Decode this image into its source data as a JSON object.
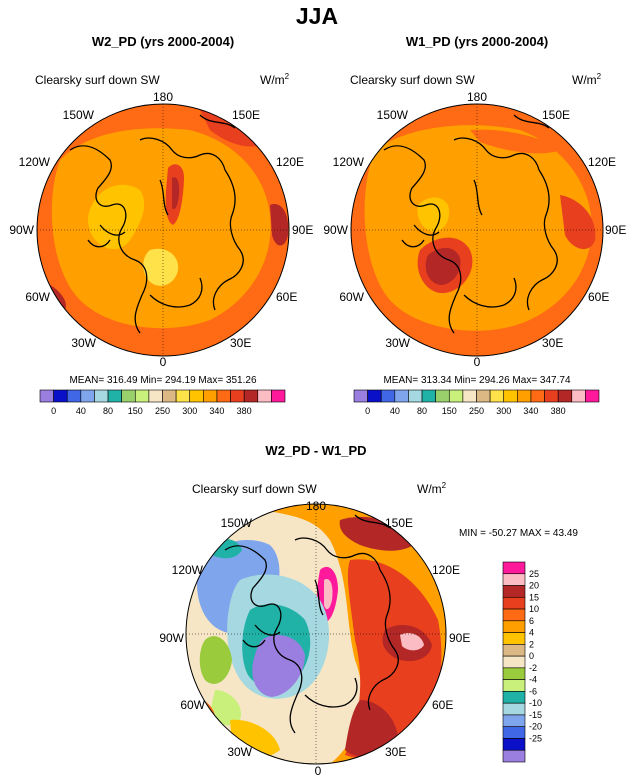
{
  "title": "JJA",
  "panels": [
    {
      "title": "W2_PD (yrs 2000-2004)",
      "variable": "Clearsky surf down SW",
      "units_base": "W/m",
      "units_exp": "2",
      "stats": "MEAN= 316.49  Min= 294.19  Max= 351.26",
      "longitude_labels": [
        "180",
        "150E",
        "120E",
        "90E",
        "60E",
        "30E",
        "0",
        "30W",
        "60W",
        "90W",
        "120W",
        "150W"
      ]
    },
    {
      "title": "W1_PD (yrs 2000-2004)",
      "variable": "Clearsky surf down SW",
      "units_base": "W/m",
      "units_exp": "2",
      "stats": "MEAN= 313.34  Min= 294.26  Max= 347.74",
      "longitude_labels": [
        "180",
        "150E",
        "120E",
        "90E",
        "60E",
        "30E",
        "0",
        "30W",
        "60W",
        "90W",
        "120W",
        "150W"
      ]
    },
    {
      "title": "W2_PD - W1_PD",
      "variable": "Clearsky surf down SW",
      "units_base": "W/m",
      "units_exp": "2",
      "stats": "MIN = -50.27 MAX =  43.49",
      "longitude_labels": [
        "180",
        "150E",
        "120E",
        "90E",
        "60E",
        "30E",
        "0",
        "30W",
        "60W",
        "90W",
        "120W",
        "150W"
      ]
    }
  ],
  "colorbar_abs": {
    "labels": [
      "0",
      "40",
      "80",
      "150",
      "250",
      "300",
      "340",
      "380"
    ],
    "colors": [
      "#9a7fe0",
      "#0a0fc8",
      "#3f67e6",
      "#7fa6ec",
      "#a5d8e0",
      "#20b2a7",
      "#9ad06b",
      "#c8f07a",
      "#f7e6c5",
      "#dcb884",
      "#ffe14a",
      "#ffc300",
      "#ffa000",
      "#ff6a14",
      "#e83f1e",
      "#b32726",
      "#fbbcc4",
      "#ff1a9c"
    ]
  },
  "colorbar_diff": {
    "labels": [
      "25",
      "20",
      "15",
      "10",
      "6",
      "4",
      "2",
      "0",
      "-2",
      "-4",
      "-6",
      "-10",
      "-15",
      "-20",
      "-25"
    ],
    "colors": [
      "#ff1a9c",
      "#fbbcc4",
      "#b32726",
      "#e83f1e",
      "#ff6a14",
      "#ffa000",
      "#ffc300",
      "#dcb884",
      "#f7e6c5",
      "#9acb3c",
      "#c8f07a",
      "#20b2a7",
      "#a5d8e0",
      "#7fa6ec",
      "#3f67e6",
      "#0a0fc8",
      "#9a7fe0"
    ]
  },
  "chart_data": [
    {
      "type": "heatmap",
      "title": "W2_PD (yrs 2000-2004)",
      "projection": "north polar stereographic",
      "variable": "Clearsky surf down SW",
      "units": "W/m^2",
      "mean": 316.49,
      "min": 294.19,
      "max": 351.26,
      "levels": [
        0,
        40,
        80,
        150,
        250,
        300,
        340,
        380
      ]
    },
    {
      "type": "heatmap",
      "title": "W1_PD (yrs 2000-2004)",
      "projection": "north polar stereographic",
      "variable": "Clearsky surf down SW",
      "units": "W/m^2",
      "mean": 313.34,
      "min": 294.26,
      "max": 347.74,
      "levels": [
        0,
        40,
        80,
        150,
        250,
        300,
        340,
        380
      ]
    },
    {
      "type": "heatmap",
      "title": "W2_PD - W1_PD",
      "projection": "north polar stereographic",
      "variable": "Clearsky surf down SW",
      "units": "W/m^2",
      "min": -50.27,
      "max": 43.49,
      "levels": [
        -25,
        -20,
        -15,
        -10,
        -6,
        -4,
        -2,
        0,
        2,
        4,
        6,
        10,
        15,
        20,
        25
      ]
    }
  ]
}
